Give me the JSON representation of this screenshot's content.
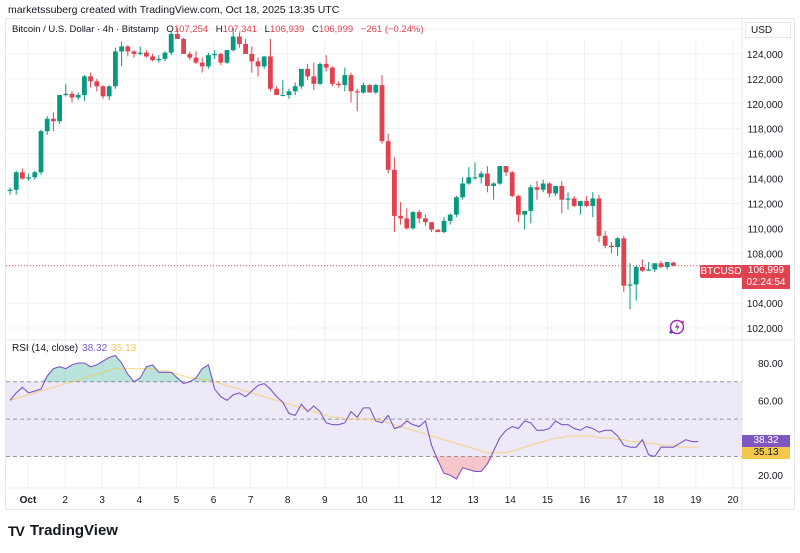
{
  "header": {
    "credit": "marketssuberg created with TradingView.com, Oct 18, 2025 13:35 UTC"
  },
  "legend": {
    "symbol": "Bitcoin / U.S. Dollar · 4h · Bitstamp",
    "o_label": "O",
    "o": "107,254",
    "h_label": "H",
    "h": "107,341",
    "l_label": "L",
    "l": "106,939",
    "c_label": "C",
    "c": "106,999",
    "change": "−261 (−0.24%)"
  },
  "price_axis": {
    "currency": "USD",
    "ticks": [
      "126,000",
      "124,000",
      "122,000",
      "120,000",
      "118,000",
      "116,000",
      "114,000",
      "112,000",
      "110,000",
      "108,000",
      "104,000",
      "102,000"
    ]
  },
  "last_price": {
    "symbol": "BTCUSD",
    "price": "106,999",
    "countdown": "02:24:54"
  },
  "rsi": {
    "title": "RSI (14, close)",
    "value": "38.32",
    "ma_value": "35.13",
    "ticks": [
      "80.00",
      "60.00",
      "20.00"
    ],
    "colors": {
      "rsi": "#7e57c2",
      "ma": "#f2c94c"
    }
  },
  "time_axis": {
    "ticks": [
      "Oct",
      "2",
      "3",
      "4",
      "5",
      "6",
      "7",
      "8",
      "9",
      "10",
      "11",
      "12",
      "13",
      "14",
      "15",
      "16",
      "17",
      "18",
      "19",
      "20"
    ]
  },
  "branding": {
    "logo_mark": "TV",
    "name": "TradingView"
  },
  "colors": {
    "up": "#089981",
    "down": "#e0434f",
    "grid": "#f0f1f3",
    "band": "#ede9f8"
  },
  "chart_data": [
    {
      "type": "candlestick",
      "title": "Bitcoin / U.S. Dollar · 4h · Bitstamp",
      "ylabel": "USD",
      "ylim": [
        101000,
        127500
      ],
      "x_ticks": [
        "Oct",
        "2",
        "3",
        "4",
        "5",
        "6",
        "7",
        "8",
        "9",
        "10",
        "11",
        "12",
        "13",
        "14",
        "15",
        "16",
        "17",
        "18",
        "19",
        "20"
      ],
      "ohlc": [
        [
          113000,
          113300,
          112700,
          113100
        ],
        [
          113100,
          114600,
          112700,
          114500
        ],
        [
          114500,
          114800,
          113900,
          114000
        ],
        [
          114000,
          114400,
          113800,
          114100
        ],
        [
          114100,
          114600,
          113900,
          114500
        ],
        [
          114500,
          117900,
          114300,
          117800
        ],
        [
          117800,
          119000,
          117500,
          118800
        ],
        [
          118800,
          119300,
          117800,
          118600
        ],
        [
          118600,
          120700,
          118400,
          120700
        ],
        [
          120700,
          121600,
          120600,
          120800
        ],
        [
          120800,
          121000,
          120100,
          120500
        ],
        [
          120500,
          120900,
          120300,
          120700
        ],
        [
          120700,
          122300,
          120200,
          122200
        ],
        [
          122200,
          122500,
          121300,
          121800
        ],
        [
          121800,
          122000,
          121000,
          121400
        ],
        [
          121400,
          121500,
          120400,
          120600
        ],
        [
          120600,
          121500,
          120300,
          121400
        ],
        [
          121400,
          124500,
          121200,
          124200
        ],
        [
          124200,
          125000,
          123000,
          124600
        ],
        [
          124600,
          124700,
          123800,
          124200
        ],
        [
          124200,
          124300,
          123700,
          124000
        ],
        [
          124000,
          124600,
          123900,
          124100
        ],
        [
          124100,
          124300,
          123700,
          123800
        ],
        [
          123800,
          124000,
          123400,
          123500
        ],
        [
          123500,
          123900,
          123300,
          123600
        ],
        [
          123600,
          124200,
          123400,
          124100
        ],
        [
          124100,
          125800,
          123900,
          125600
        ],
        [
          125600,
          126100,
          125400,
          125200
        ],
        [
          125200,
          125300,
          124300,
          124000
        ],
        [
          124000,
          124200,
          123500,
          123700
        ],
        [
          123700,
          124200,
          123200,
          123300
        ],
        [
          123300,
          123700,
          122500,
          123000
        ],
        [
          123000,
          124100,
          122800,
          123900
        ],
        [
          123900,
          124300,
          123600,
          124000
        ],
        [
          124000,
          124100,
          123100,
          123300
        ],
        [
          123300,
          124300,
          123200,
          124300
        ],
        [
          124300,
          126100,
          124200,
          125400
        ],
        [
          125400,
          125700,
          124500,
          124800
        ],
        [
          124800,
          125200,
          124000,
          124000
        ],
        [
          124000,
          124600,
          122500,
          123400
        ],
        [
          123400,
          123700,
          122200,
          123000
        ],
        [
          123000,
          123800,
          122800,
          123800
        ],
        [
          123800,
          125200,
          121000,
          121200
        ],
        [
          121200,
          121400,
          120700,
          120700
        ],
        [
          120700,
          121900,
          120600,
          120700
        ],
        [
          120700,
          121200,
          120400,
          121000
        ],
        [
          121000,
          121700,
          120700,
          121400
        ],
        [
          121400,
          122800,
          121200,
          122800
        ],
        [
          122800,
          123200,
          121900,
          122200
        ],
        [
          122200,
          123300,
          121100,
          121600
        ],
        [
          121600,
          123300,
          121500,
          123200
        ],
        [
          123200,
          123900,
          122600,
          122900
        ],
        [
          122900,
          123000,
          121400,
          121600
        ],
        [
          121600,
          121800,
          121300,
          121500
        ],
        [
          121500,
          122900,
          121000,
          122300
        ],
        [
          122300,
          122500,
          120100,
          121000
        ],
        [
          121000,
          121200,
          119400,
          120900
        ],
        [
          120900,
          121700,
          120800,
          121500
        ],
        [
          121500,
          121600,
          120900,
          120900
        ],
        [
          120900,
          121600,
          120800,
          121500
        ],
        [
          121500,
          122300,
          116800,
          117000
        ],
        [
          117000,
          117600,
          114400,
          114700
        ],
        [
          114700,
          115700,
          109700,
          111000
        ],
        [
          111000,
          112100,
          110300,
          110800
        ],
        [
          110800,
          111600,
          109900,
          110000
        ],
        [
          110000,
          111400,
          109900,
          111300
        ],
        [
          111300,
          111500,
          110400,
          110800
        ],
        [
          110800,
          111100,
          110200,
          110500
        ],
        [
          110500,
          110500,
          109700,
          109900
        ],
        [
          109900,
          109900,
          109700,
          109700
        ],
        [
          109700,
          110900,
          109600,
          110600
        ],
        [
          110600,
          111200,
          110300,
          111100
        ],
        [
          111100,
          112600,
          110900,
          112500
        ],
        [
          112500,
          114100,
          112300,
          113600
        ],
        [
          113600,
          114900,
          113500,
          114100
        ],
        [
          114100,
          115300,
          113900,
          114100
        ],
        [
          114100,
          114600,
          113600,
          114400
        ],
        [
          114400,
          115000,
          112900,
          113400
        ],
        [
          113400,
          113700,
          112300,
          113600
        ],
        [
          113600,
          115000,
          113500,
          115000
        ],
        [
          115000,
          115000,
          114200,
          114500
        ],
        [
          114500,
          114600,
          112500,
          112600
        ],
        [
          112600,
          112700,
          110500,
          111100
        ],
        [
          111100,
          111400,
          109900,
          111400
        ],
        [
          111400,
          113500,
          110400,
          113300
        ],
        [
          113300,
          113800,
          112300,
          113100
        ],
        [
          113100,
          113900,
          112900,
          113600
        ],
        [
          113600,
          113700,
          112500,
          112800
        ],
        [
          112800,
          113300,
          112600,
          113400
        ],
        [
          113400,
          113800,
          111200,
          112300
        ],
        [
          112300,
          112900,
          111500,
          112400
        ],
        [
          112400,
          112600,
          111700,
          111800
        ],
        [
          111800,
          112100,
          111100,
          112200
        ],
        [
          112200,
          112600,
          111700,
          111800
        ],
        [
          111800,
          112900,
          110900,
          112400
        ],
        [
          112400,
          112700,
          108900,
          109400
        ],
        [
          109400,
          109800,
          108400,
          108600
        ],
        [
          108600,
          108900,
          108000,
          108500
        ],
        [
          108500,
          109300,
          107800,
          109200
        ],
        [
          109200,
          109400,
          104900,
          105400
        ],
        [
          105400,
          107200,
          103500,
          105500
        ],
        [
          105500,
          107000,
          104200,
          106900
        ],
        [
          106900,
          107500,
          106500,
          106600
        ],
        [
          106600,
          107300,
          106600,
          106700
        ],
        [
          106700,
          107200,
          106500,
          107200
        ],
        [
          107200,
          107400,
          106800,
          106900
        ],
        [
          106900,
          107300,
          106700,
          107300
        ],
        [
          107254,
          107341,
          106939,
          106999
        ]
      ]
    },
    {
      "type": "line",
      "title": "RSI (14, close)",
      "ylim": [
        14,
        92
      ],
      "bands": {
        "upper": 70,
        "middle": 50,
        "lower": 30
      },
      "series": [
        {
          "name": "RSI",
          "color": "#7e57c2",
          "values": [
            60,
            64,
            67,
            64,
            65,
            66,
            73,
            77,
            78,
            77,
            79,
            80,
            80,
            78,
            79,
            81,
            83,
            84,
            80,
            74,
            70,
            72,
            78,
            79,
            75,
            75,
            75,
            72,
            69,
            70,
            72,
            77,
            79,
            66,
            62,
            60,
            63,
            64,
            62,
            65,
            68,
            69,
            66,
            62,
            59,
            53,
            52,
            58,
            54,
            57,
            54,
            48,
            47,
            47,
            48,
            54,
            51,
            56,
            56,
            49,
            48,
            52,
            45,
            46,
            49,
            47,
            46,
            49,
            36,
            28,
            21,
            20,
            18,
            24,
            23,
            22,
            22,
            26,
            33,
            40,
            44,
            46,
            45,
            49,
            48,
            44,
            44,
            45,
            49,
            47,
            47,
            45,
            44,
            46,
            45,
            43,
            44,
            44,
            41,
            36,
            35,
            35,
            39,
            31,
            30,
            35,
            35,
            35,
            37,
            39,
            38,
            38
          ]
        },
        {
          "name": "RSI-based MA",
          "color": "#f2c94c",
          "values": [
            60,
            61,
            62,
            63,
            64,
            65,
            66,
            67,
            68,
            69,
            70,
            71,
            72,
            73,
            74,
            75,
            76,
            77,
            77,
            77,
            77,
            77,
            77,
            77,
            76,
            76,
            75,
            74,
            73,
            72,
            72,
            71,
            71,
            70,
            69,
            68,
            67,
            66,
            65,
            64,
            63,
            62,
            61,
            60,
            59,
            58,
            57,
            56,
            55,
            54,
            53,
            52,
            51,
            51,
            50,
            50,
            50,
            50,
            50,
            50,
            49,
            48,
            47,
            46,
            45,
            44,
            43,
            42,
            41,
            40,
            39,
            38,
            37,
            36,
            35,
            34,
            33,
            32,
            32,
            32,
            32,
            33,
            34,
            35,
            36,
            37,
            38,
            39,
            40,
            40,
            41,
            41,
            41,
            41,
            41,
            40,
            40,
            40,
            39,
            39,
            38,
            38,
            38,
            37,
            37,
            36,
            36,
            36,
            35,
            35,
            35,
            35
          ]
        }
      ]
    }
  ]
}
